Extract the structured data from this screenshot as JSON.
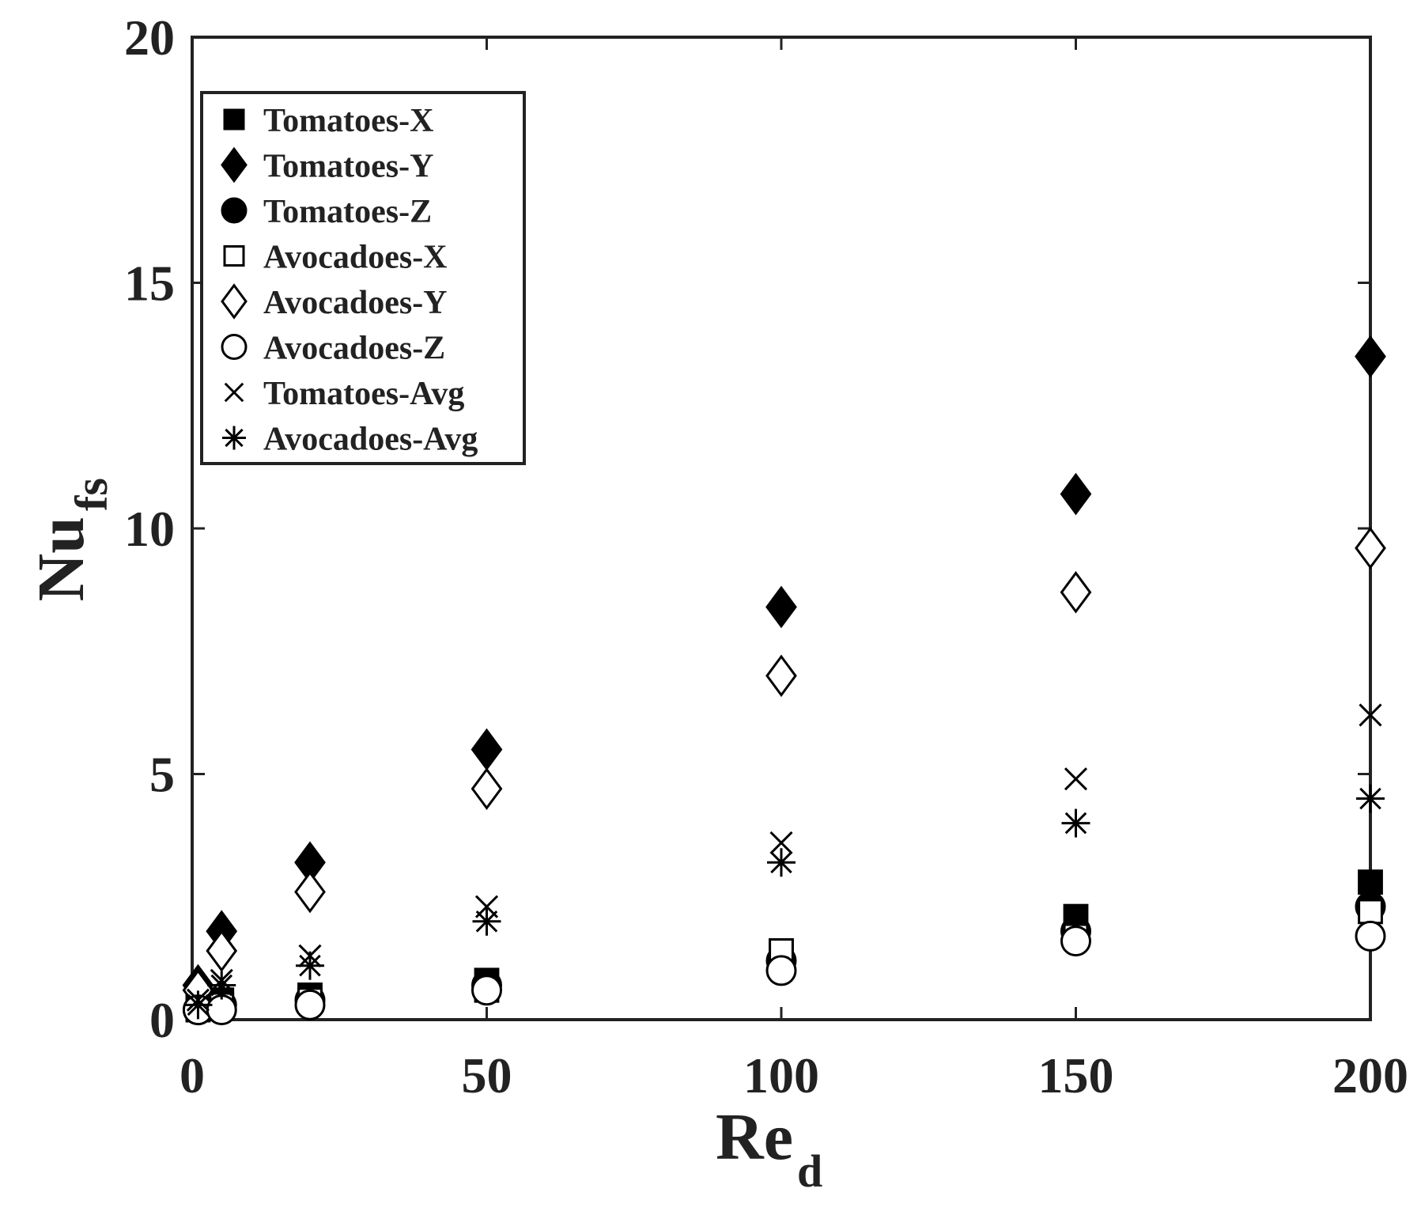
{
  "chart_data": {
    "type": "scatter",
    "xlabel": "Re",
    "xlabel_sub": "d",
    "ylabel": "Nu",
    "ylabel_sub": "fs",
    "xlim": [
      0,
      200
    ],
    "ylim": [
      0,
      20
    ],
    "xticks": [
      0,
      50,
      100,
      150,
      200
    ],
    "yticks": [
      0,
      5,
      10,
      15,
      20
    ],
    "grid": false,
    "legend_position": "top-left",
    "x": [
      1,
      5,
      20,
      50,
      100,
      150,
      200
    ],
    "series": [
      {
        "name": "Tomatoes-X",
        "marker": "square-filled",
        "values": [
          0.3,
          0.4,
          0.5,
          0.8,
          1.4,
          2.1,
          2.8
        ]
      },
      {
        "name": "Tomatoes-Y",
        "marker": "diamond-filled",
        "values": [
          0.7,
          1.8,
          3.2,
          5.5,
          8.4,
          10.7,
          13.5
        ]
      },
      {
        "name": "Tomatoes-Z",
        "marker": "circle-filled",
        "values": [
          0.2,
          0.3,
          0.4,
          0.7,
          1.2,
          1.8,
          2.3
        ]
      },
      {
        "name": "Avocadoes-X",
        "marker": "square-open",
        "values": [
          0.2,
          0.3,
          0.4,
          0.6,
          1.4,
          1.7,
          2.2
        ]
      },
      {
        "name": "Avocadoes-Y",
        "marker": "diamond-open",
        "values": [
          0.6,
          1.4,
          2.6,
          4.7,
          7.0,
          8.7,
          9.6
        ]
      },
      {
        "name": "Avocadoes-Z",
        "marker": "circle-open",
        "values": [
          0.2,
          0.2,
          0.3,
          0.6,
          1.0,
          1.6,
          1.7
        ]
      },
      {
        "name": "Tomatoes-Avg",
        "marker": "x",
        "values": [
          0.4,
          0.8,
          1.3,
          2.3,
          3.6,
          4.9,
          6.2
        ]
      },
      {
        "name": "Avocadoes-Avg",
        "marker": "asterisk",
        "values": [
          0.3,
          0.7,
          1.1,
          2.0,
          3.2,
          4.0,
          4.5
        ]
      }
    ],
    "colors": {
      "marker": "#000000",
      "axis": "#222222",
      "background": "#ffffff"
    }
  }
}
